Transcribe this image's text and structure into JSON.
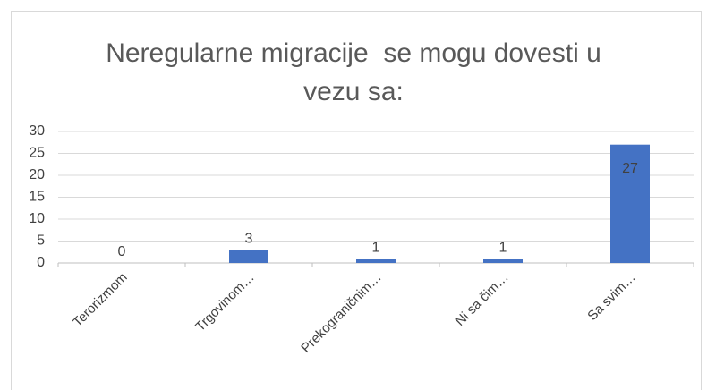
{
  "chart_data": {
    "type": "bar",
    "title": "Neregularne migracije  se mogu dovesti u vezu sa:",
    "categories": [
      "Terorizmom",
      "Trgovinom…",
      "Prekograničnim…",
      "Ni sa čim…",
      "Sa svim…"
    ],
    "values": [
      0,
      3,
      1,
      1,
      27
    ],
    "color": "#4472c4",
    "ylim": [
      0,
      30
    ],
    "yticks": [
      0,
      5,
      10,
      15,
      20,
      25,
      30
    ],
    "grid": true
  }
}
